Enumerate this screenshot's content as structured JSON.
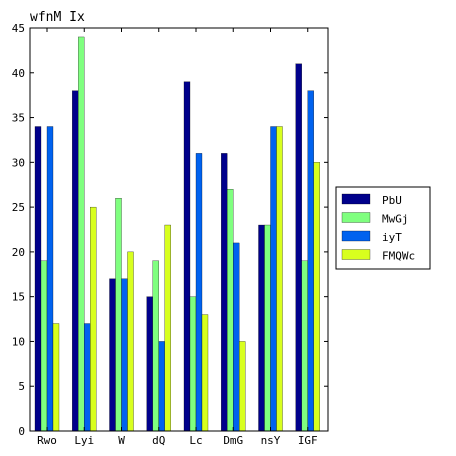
{
  "chart_data": {
    "type": "bar",
    "title": "wfnM Ix",
    "xlabel": "",
    "ylabel": "",
    "categories": [
      "Rwo",
      "Lyi",
      "W",
      "dQ",
      "Lc",
      "DmG",
      "nsY",
      "IGF"
    ],
    "ylim": [
      0,
      45
    ],
    "yticks": [
      0,
      5,
      10,
      15,
      20,
      25,
      30,
      35,
      40,
      45
    ],
    "grid": false,
    "legend_position": "right",
    "series": [
      {
        "name": "PbU",
        "color": "#00008b",
        "values": [
          34,
          38,
          17,
          15,
          39,
          31,
          23,
          41
        ]
      },
      {
        "name": "MwGj",
        "color": "#7fff7f",
        "values": [
          19,
          44,
          26,
          19,
          15,
          27,
          23,
          19
        ]
      },
      {
        "name": "iyT",
        "color": "#0062ef",
        "values": [
          34,
          12,
          17,
          10,
          31,
          21,
          34,
          38
        ]
      },
      {
        "name": "FMQWc",
        "color": "#d8ff1e",
        "values": [
          12,
          25,
          20,
          23,
          13,
          10,
          34,
          30
        ]
      }
    ]
  }
}
